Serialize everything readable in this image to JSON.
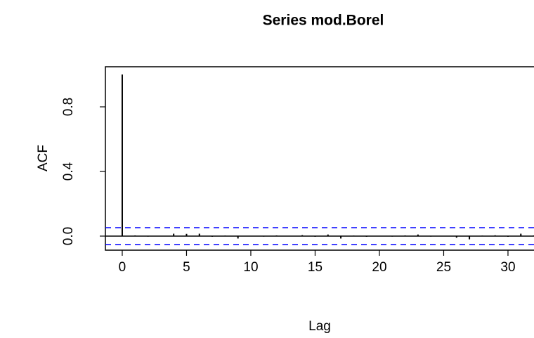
{
  "chart_data": {
    "type": "acf",
    "title": "Series  mod.Borel",
    "x_label": "Lag",
    "y_label": "ACF",
    "x": [
      0,
      1,
      2,
      3,
      4,
      5,
      6,
      7,
      8,
      9,
      10,
      11,
      12,
      13,
      14,
      15,
      16,
      17,
      18,
      19,
      20,
      21,
      22,
      23,
      24,
      25,
      26,
      27,
      28,
      29,
      30,
      31,
      32
    ],
    "values": [
      1,
      0.004,
      -0.003,
      0.002,
      0.015,
      0.014,
      0.015,
      -0.004,
      0.003,
      -0.015,
      0.002,
      -0.003,
      0.004,
      -0.002,
      0.006,
      -0.004,
      0.01,
      -0.015,
      0.003,
      -0.004,
      0.002,
      -0.003,
      0.004,
      0.01,
      -0.003,
      0.002,
      -0.01,
      -0.02,
      0.003,
      0.005,
      -0.004,
      0.015,
      0.004
    ],
    "color": "#000000",
    "ci": 0.052,
    "ci_color": "#0000ff",
    "xlim": [
      -1.31,
      34.1
    ],
    "ylim": [
      -0.087,
      1.048
    ],
    "xticks": [
      0,
      5,
      10,
      15,
      20,
      25,
      30
    ],
    "yticks": [
      {
        "value": 0,
        "label": "0.0"
      },
      {
        "value": 0.4,
        "label": "0.4"
      },
      {
        "value": 0.8,
        "label": "0.8"
      }
    ]
  }
}
